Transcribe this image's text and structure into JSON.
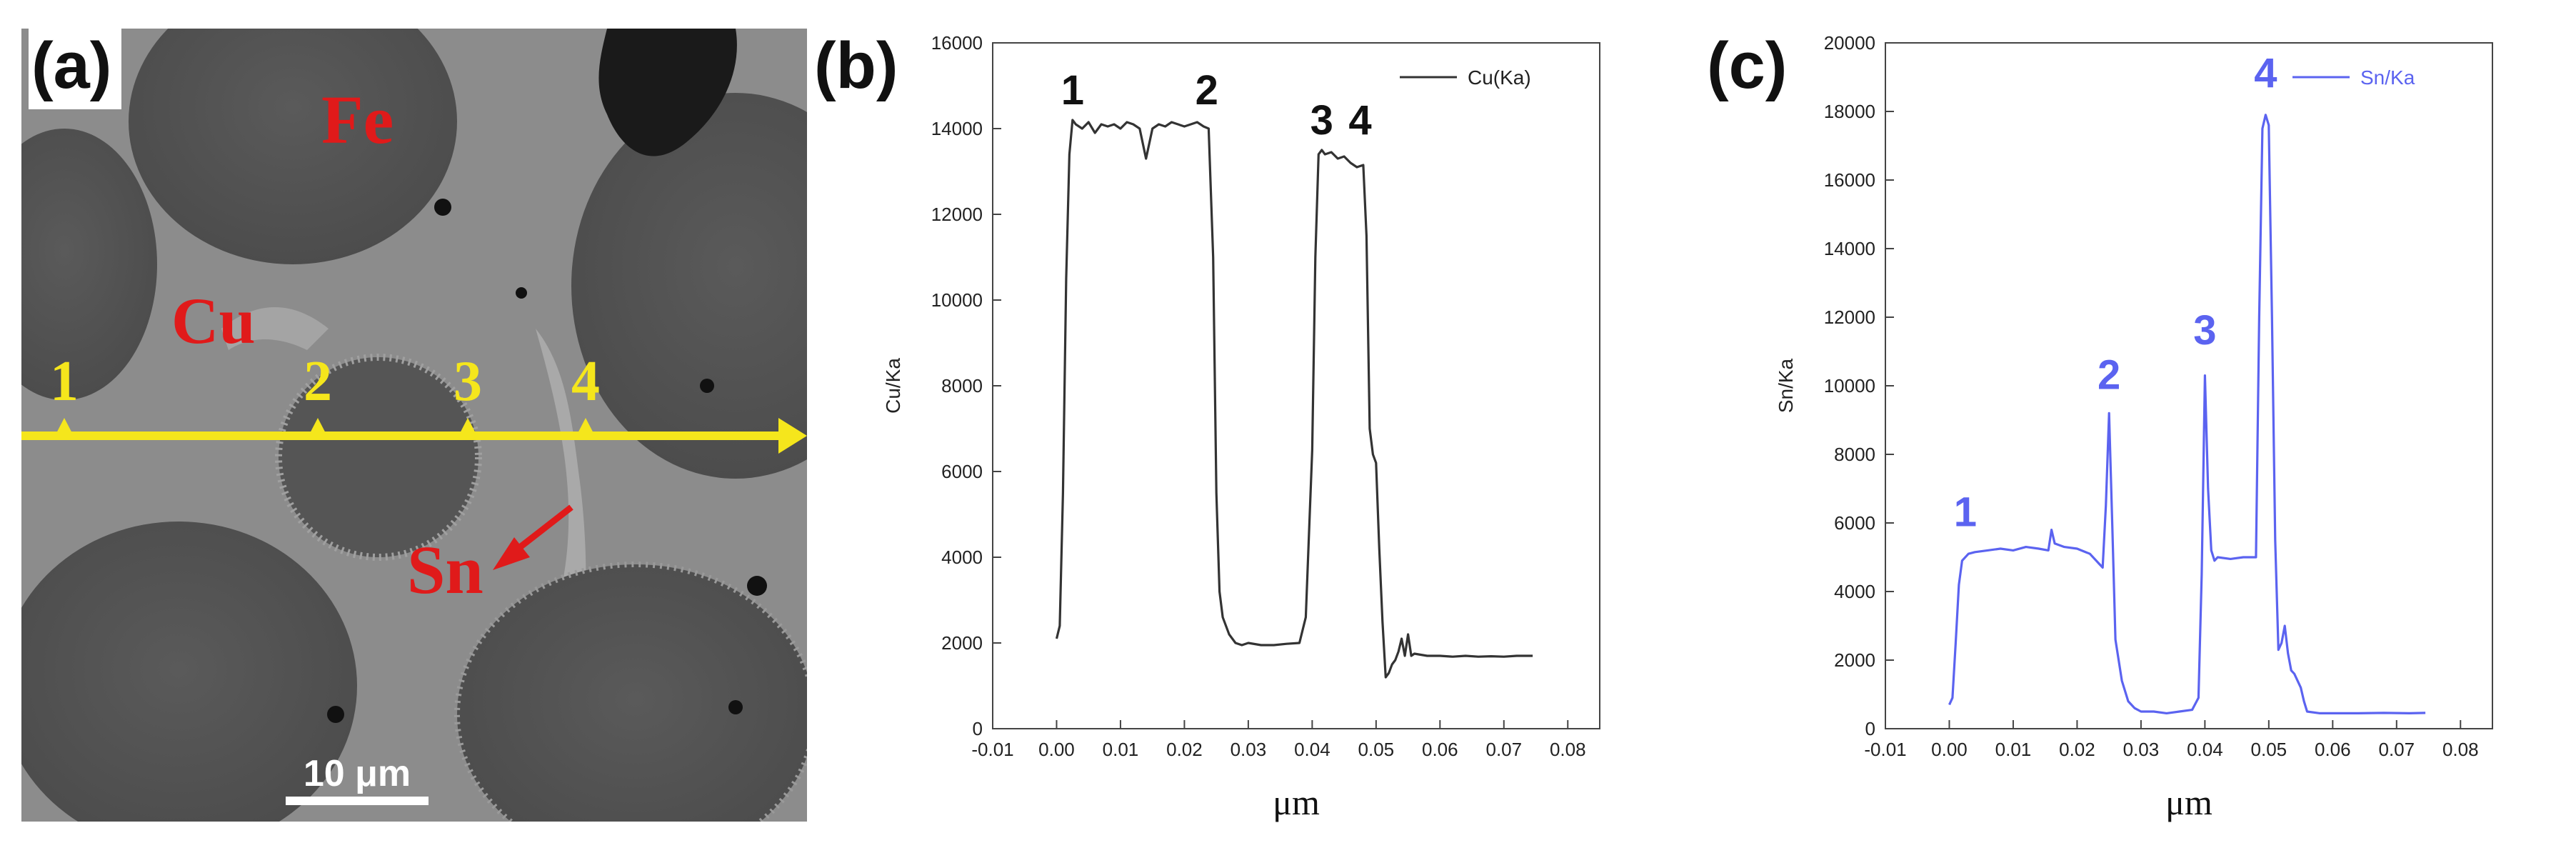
{
  "panels": [
    {
      "id": "a",
      "label": "(a)"
    },
    {
      "id": "b",
      "label": "(b)"
    },
    {
      "id": "c",
      "label": "(c)"
    }
  ],
  "micrograph": {
    "phase_labels": {
      "fe": "Fe",
      "cu": "Cu",
      "sn": "Sn"
    },
    "point_labels": [
      "1",
      "2",
      "3",
      "4"
    ],
    "scale_bar": "10 μm",
    "colors": {
      "line": "#f5e61c",
      "text_phase": "#e01a1a",
      "points": "#f5e61c"
    }
  },
  "chart_data": [
    {
      "type": "line",
      "panel": "b",
      "legend": "Cu(Ka)",
      "legend_position": "top-right",
      "xlabel": "μm",
      "ylabel": "Cu/Ka",
      "xlim": [
        -0.01,
        0.085
      ],
      "ylim": [
        0,
        16000
      ],
      "xticks": [
        "-0.01",
        "0.00",
        "0.01",
        "0.02",
        "0.03",
        "0.04",
        "0.05",
        "0.06",
        "0.07",
        "0.08"
      ],
      "yticks": [
        "0",
        "2000",
        "4000",
        "6000",
        "8000",
        "10000",
        "12000",
        "14000",
        "16000"
      ],
      "color": "#333333",
      "annotations": [
        {
          "text": "1",
          "x": 0.0025,
          "y": 14400
        },
        {
          "text": "2",
          "x": 0.0235,
          "y": 14400
        },
        {
          "text": "3",
          "x": 0.0415,
          "y": 13700
        },
        {
          "text": "4",
          "x": 0.0475,
          "y": 13700
        }
      ],
      "series": [
        {
          "x": [
            0.0,
            0.0005,
            0.001,
            0.0015,
            0.002,
            0.0025,
            0.003,
            0.004,
            0.005,
            0.006,
            0.007,
            0.008,
            0.009,
            0.01,
            0.011,
            0.012,
            0.013,
            0.014,
            0.015,
            0.016,
            0.017,
            0.018,
            0.019,
            0.02,
            0.021,
            0.022,
            0.023,
            0.0238,
            0.0245,
            0.025,
            0.0255,
            0.026,
            0.027,
            0.028,
            0.029,
            0.03,
            0.032,
            0.034,
            0.036,
            0.038,
            0.039,
            0.04,
            0.0405,
            0.041,
            0.0415,
            0.042,
            0.043,
            0.044,
            0.045,
            0.046,
            0.047,
            0.048,
            0.0485,
            0.049,
            0.0495,
            0.05,
            0.0505,
            0.051,
            0.0515,
            0.052,
            0.0525,
            0.053,
            0.0535,
            0.054,
            0.0545,
            0.055,
            0.0555,
            0.056,
            0.058,
            0.06,
            0.062,
            0.064,
            0.066,
            0.068,
            0.07,
            0.072,
            0.0745
          ],
          "y": [
            2100,
            2400,
            5500,
            10500,
            13400,
            14200,
            14100,
            14000,
            14150,
            13900,
            14100,
            14050,
            14100,
            14000,
            14150,
            14100,
            14000,
            13300,
            14000,
            14100,
            14050,
            14150,
            14100,
            14050,
            14100,
            14150,
            14050,
            14000,
            11000,
            5500,
            3200,
            2600,
            2200,
            2000,
            1950,
            2000,
            1950,
            1950,
            1980,
            2000,
            2600,
            6500,
            11000,
            13400,
            13500,
            13400,
            13450,
            13300,
            13350,
            13200,
            13100,
            13150,
            11500,
            7000,
            6400,
            6200,
            4200,
            2500,
            1200,
            1300,
            1500,
            1600,
            1800,
            2100,
            1700,
            2200,
            1700,
            1750,
            1700,
            1700,
            1680,
            1700,
            1680,
            1690,
            1680,
            1700,
            1700
          ]
        }
      ]
    },
    {
      "type": "line",
      "panel": "c",
      "legend": "Sn/Ka",
      "legend_position": "top-right",
      "xlabel": "μm",
      "ylabel": "Sn/Ka",
      "xlim": [
        -0.01,
        0.085
      ],
      "ylim": [
        0,
        20000
      ],
      "xticks": [
        "-0.01",
        "0.00",
        "0.01",
        "0.02",
        "0.03",
        "0.04",
        "0.05",
        "0.06",
        "0.07",
        "0.08"
      ],
      "yticks": [
        "0",
        "2000",
        "4000",
        "6000",
        "8000",
        "10000",
        "12000",
        "14000",
        "16000",
        "18000",
        "20000"
      ],
      "color": "#5b63f0",
      "annotations": [
        {
          "text": "1",
          "x": 0.0025,
          "y": 5700
        },
        {
          "text": "2",
          "x": 0.025,
          "y": 9700
        },
        {
          "text": "3",
          "x": 0.04,
          "y": 11000
        },
        {
          "text": "4",
          "x": 0.0495,
          "y": 18500
        }
      ],
      "series": [
        {
          "x": [
            0.0,
            0.0005,
            0.001,
            0.0015,
            0.002,
            0.003,
            0.004,
            0.006,
            0.008,
            0.01,
            0.012,
            0.014,
            0.0155,
            0.016,
            0.0165,
            0.018,
            0.02,
            0.022,
            0.0235,
            0.024,
            0.0245,
            0.025,
            0.0255,
            0.026,
            0.027,
            0.028,
            0.029,
            0.03,
            0.032,
            0.034,
            0.036,
            0.038,
            0.039,
            0.0395,
            0.04,
            0.0405,
            0.041,
            0.0415,
            0.042,
            0.044,
            0.046,
            0.048,
            0.0485,
            0.049,
            0.0495,
            0.05,
            0.0505,
            0.051,
            0.0515,
            0.052,
            0.0525,
            0.053,
            0.0535,
            0.054,
            0.0545,
            0.055,
            0.0555,
            0.056,
            0.058,
            0.06,
            0.064,
            0.068,
            0.072,
            0.0745
          ],
          "y": [
            700,
            900,
            2500,
            4200,
            4900,
            5100,
            5150,
            5200,
            5250,
            5200,
            5300,
            5250,
            5200,
            5800,
            5400,
            5300,
            5250,
            5100,
            4800,
            4700,
            6500,
            9200,
            6000,
            2600,
            1400,
            800,
            600,
            500,
            500,
            450,
            500,
            550,
            900,
            4500,
            10300,
            7000,
            5200,
            4900,
            5000,
            4950,
            5000,
            5000,
            12000,
            17500,
            17900,
            17600,
            12000,
            5500,
            2300,
            2500,
            3000,
            2200,
            1700,
            1600,
            1400,
            1200,
            800,
            500,
            450,
            450,
            450,
            460,
            450,
            460
          ]
        }
      ]
    }
  ]
}
